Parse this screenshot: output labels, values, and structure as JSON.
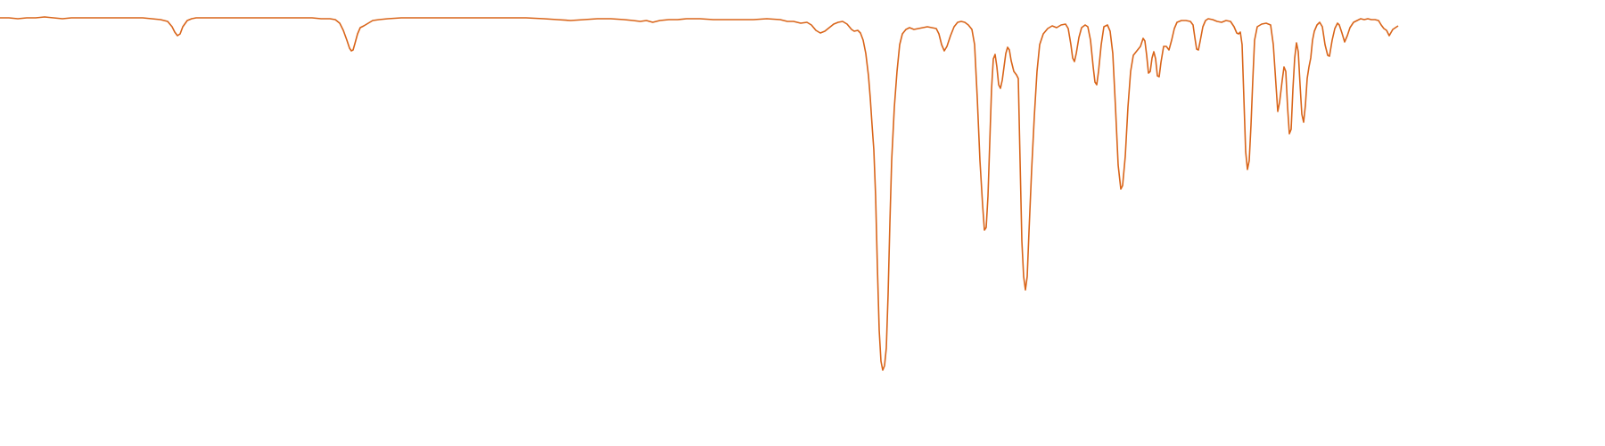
{
  "chart_data": {
    "type": "line",
    "title": "",
    "xlabel": "",
    "ylabel": "",
    "grid": false,
    "legend": "none",
    "series_color": "#d9651a",
    "xlim": [
      0,
      1568
    ],
    "ylim": [
      0,
      420
    ],
    "series": [
      {
        "name": "",
        "points": [
          [
            0,
            20
          ],
          [
            10,
            20
          ],
          [
            20,
            21
          ],
          [
            30,
            20
          ],
          [
            40,
            20
          ],
          [
            50,
            19
          ],
          [
            60,
            20
          ],
          [
            70,
            21
          ],
          [
            80,
            20
          ],
          [
            90,
            20
          ],
          [
            100,
            20
          ],
          [
            110,
            20
          ],
          [
            120,
            20
          ],
          [
            130,
            20
          ],
          [
            140,
            20
          ],
          [
            150,
            20
          ],
          [
            160,
            20
          ],
          [
            170,
            21
          ],
          [
            180,
            22
          ],
          [
            188,
            24
          ],
          [
            193,
            30
          ],
          [
            196,
            36
          ],
          [
            199,
            40
          ],
          [
            202,
            38
          ],
          [
            205,
            30
          ],
          [
            210,
            23
          ],
          [
            215,
            21
          ],
          [
            220,
            20
          ],
          [
            230,
            20
          ],
          [
            240,
            20
          ],
          [
            250,
            20
          ],
          [
            260,
            20
          ],
          [
            270,
            20
          ],
          [
            280,
            20
          ],
          [
            290,
            20
          ],
          [
            300,
            20
          ],
          [
            310,
            20
          ],
          [
            320,
            20
          ],
          [
            330,
            20
          ],
          [
            340,
            20
          ],
          [
            350,
            20
          ],
          [
            360,
            21
          ],
          [
            370,
            21
          ],
          [
            376,
            22
          ],
          [
            381,
            26
          ],
          [
            385,
            34
          ],
          [
            389,
            45
          ],
          [
            392,
            54
          ],
          [
            394,
            57
          ],
          [
            396,
            56
          ],
          [
            398,
            49
          ],
          [
            401,
            38
          ],
          [
            404,
            31
          ],
          [
            408,
            29
          ],
          [
            413,
            26
          ],
          [
            418,
            23
          ],
          [
            425,
            22
          ],
          [
            435,
            21
          ],
          [
            450,
            20
          ],
          [
            470,
            20
          ],
          [
            490,
            20
          ],
          [
            510,
            20
          ],
          [
            530,
            20
          ],
          [
            550,
            20
          ],
          [
            570,
            20
          ],
          [
            590,
            20
          ],
          [
            610,
            21
          ],
          [
            625,
            22
          ],
          [
            640,
            23
          ],
          [
            655,
            22
          ],
          [
            670,
            21
          ],
          [
            685,
            21
          ],
          [
            700,
            22
          ],
          [
            710,
            23
          ],
          [
            718,
            24
          ],
          [
            725,
            23
          ],
          [
            732,
            25
          ],
          [
            740,
            23
          ],
          [
            750,
            22
          ],
          [
            760,
            22
          ],
          [
            770,
            21
          ],
          [
            785,
            21
          ],
          [
            800,
            22
          ],
          [
            815,
            22
          ],
          [
            830,
            22
          ],
          [
            845,
            22
          ],
          [
            860,
            21
          ],
          [
            875,
            22
          ],
          [
            883,
            24
          ],
          [
            890,
            24
          ],
          [
            898,
            26
          ],
          [
            905,
            25
          ],
          [
            910,
            28
          ],
          [
            915,
            34
          ],
          [
            920,
            37
          ],
          [
            925,
            35
          ],
          [
            930,
            31
          ],
          [
            935,
            27
          ],
          [
            940,
            25
          ],
          [
            945,
            24
          ],
          [
            950,
            27
          ],
          [
            955,
            33
          ],
          [
            958,
            35
          ],
          [
            962,
            34
          ],
          [
            965,
            37
          ],
          [
            968,
            45
          ],
          [
            971,
            60
          ],
          [
            974,
            85
          ],
          [
            976,
            110
          ],
          [
            978,
            140
          ],
          [
            980,
            168
          ],
          [
            982,
            220
          ],
          [
            984,
            300
          ],
          [
            986,
            370
          ],
          [
            988,
            405
          ],
          [
            990,
            415
          ],
          [
            992,
            410
          ],
          [
            994,
            390
          ],
          [
            996,
            330
          ],
          [
            998,
            250
          ],
          [
            1000,
            180
          ],
          [
            1003,
            120
          ],
          [
            1006,
            80
          ],
          [
            1009,
            50
          ],
          [
            1012,
            38
          ],
          [
            1016,
            33
          ],
          [
            1020,
            31
          ],
          [
            1025,
            33
          ],
          [
            1030,
            32
          ],
          [
            1035,
            31
          ],
          [
            1040,
            30
          ],
          [
            1045,
            31
          ],
          [
            1050,
            32
          ],
          [
            1053,
            38
          ],
          [
            1056,
            50
          ],
          [
            1059,
            57
          ],
          [
            1062,
            52
          ],
          [
            1066,
            40
          ],
          [
            1070,
            30
          ],
          [
            1074,
            25
          ],
          [
            1078,
            24
          ],
          [
            1082,
            25
          ],
          [
            1086,
            28
          ],
          [
            1090,
            33
          ],
          [
            1093,
            50
          ],
          [
            1096,
            110
          ],
          [
            1099,
            180
          ],
          [
            1102,
            230
          ],
          [
            1104,
            258
          ],
          [
            1106,
            255
          ],
          [
            1108,
            220
          ],
          [
            1110,
            160
          ],
          [
            1112,
            100
          ],
          [
            1114,
            66
          ],
          [
            1116,
            61
          ],
          [
            1118,
            75
          ],
          [
            1120,
            95
          ],
          [
            1122,
            99
          ],
          [
            1124,
            90
          ],
          [
            1126,
            75
          ],
          [
            1128,
            60
          ],
          [
            1130,
            53
          ],
          [
            1132,
            56
          ],
          [
            1134,
            68
          ],
          [
            1137,
            80
          ],
          [
            1140,
            84
          ],
          [
            1142,
            88
          ],
          [
            1144,
            180
          ],
          [
            1146,
            270
          ],
          [
            1148,
            310
          ],
          [
            1150,
            325
          ],
          [
            1152,
            310
          ],
          [
            1154,
            260
          ],
          [
            1157,
            190
          ],
          [
            1160,
            130
          ],
          [
            1163,
            80
          ],
          [
            1166,
            50
          ],
          [
            1170,
            38
          ],
          [
            1175,
            32
          ],
          [
            1180,
            29
          ],
          [
            1185,
            31
          ],
          [
            1190,
            28
          ],
          [
            1195,
            27
          ],
          [
            1198,
            32
          ],
          [
            1201,
            50
          ],
          [
            1203,
            65
          ],
          [
            1205,
            69
          ],
          [
            1207,
            60
          ],
          [
            1210,
            42
          ],
          [
            1213,
            31
          ],
          [
            1217,
            28
          ],
          [
            1220,
            30
          ],
          [
            1223,
            45
          ],
          [
            1226,
            75
          ],
          [
            1228,
            92
          ],
          [
            1230,
            95
          ],
          [
            1232,
            80
          ],
          [
            1235,
            50
          ],
          [
            1238,
            30
          ],
          [
            1242,
            28
          ],
          [
            1245,
            35
          ],
          [
            1248,
            60
          ],
          [
            1251,
            120
          ],
          [
            1254,
            185
          ],
          [
            1257,
            212
          ],
          [
            1259,
            208
          ],
          [
            1262,
            175
          ],
          [
            1265,
            120
          ],
          [
            1268,
            80
          ],
          [
            1271,
            62
          ],
          [
            1275,
            57
          ],
          [
            1279,
            52
          ],
          [
            1282,
            43
          ],
          [
            1284,
            46
          ],
          [
            1286,
            62
          ],
          [
            1288,
            82
          ],
          [
            1290,
            80
          ],
          [
            1292,
            65
          ],
          [
            1294,
            58
          ],
          [
            1296,
            66
          ],
          [
            1298,
            85
          ],
          [
            1300,
            86
          ],
          [
            1302,
            70
          ],
          [
            1305,
            52
          ],
          [
            1308,
            52
          ],
          [
            1311,
            56
          ],
          [
            1314,
            45
          ],
          [
            1317,
            32
          ],
          [
            1320,
            25
          ],
          [
            1325,
            23
          ],
          [
            1330,
            23
          ],
          [
            1335,
            24
          ],
          [
            1338,
            28
          ],
          [
            1340,
            42
          ],
          [
            1342,
            55
          ],
          [
            1344,
            56
          ],
          [
            1346,
            46
          ],
          [
            1349,
            30
          ],
          [
            1352,
            23
          ],
          [
            1355,
            21
          ],
          [
            1360,
            22
          ],
          [
            1365,
            24
          ],
          [
            1370,
            25
          ],
          [
            1375,
            23
          ],
          [
            1380,
            24
          ],
          [
            1384,
            30
          ],
          [
            1387,
            37
          ],
          [
            1389,
            38
          ],
          [
            1391,
            36
          ],
          [
            1393,
            50
          ],
          [
            1395,
            110
          ],
          [
            1397,
            170
          ],
          [
            1399,
            190
          ],
          [
            1401,
            180
          ],
          [
            1403,
            140
          ],
          [
            1405,
            90
          ],
          [
            1407,
            45
          ],
          [
            1410,
            30
          ],
          [
            1415,
            27
          ],
          [
            1420,
            26
          ],
          [
            1425,
            28
          ],
          [
            1428,
            50
          ],
          [
            1431,
            95
          ],
          [
            1433,
            125
          ],
          [
            1435,
            115
          ],
          [
            1438,
            90
          ],
          [
            1440,
            75
          ],
          [
            1442,
            80
          ],
          [
            1444,
            120
          ],
          [
            1446,
            150
          ],
          [
            1448,
            145
          ],
          [
            1450,
            100
          ],
          [
            1452,
            65
          ],
          [
            1454,
            48
          ],
          [
            1456,
            58
          ],
          [
            1458,
            95
          ],
          [
            1460,
            128
          ],
          [
            1462,
            137
          ],
          [
            1464,
            118
          ],
          [
            1466,
            88
          ],
          [
            1468,
            75
          ],
          [
            1470,
            65
          ],
          [
            1472,
            45
          ],
          [
            1474,
            35
          ],
          [
            1477,
            28
          ],
          [
            1480,
            25
          ],
          [
            1483,
            30
          ],
          [
            1486,
            50
          ],
          [
            1489,
            62
          ],
          [
            1491,
            63
          ],
          [
            1494,
            45
          ],
          [
            1497,
            32
          ],
          [
            1500,
            26
          ],
          [
            1502,
            28
          ],
          [
            1505,
            37
          ],
          [
            1508,
            47
          ],
          [
            1511,
            40
          ],
          [
            1514,
            31
          ],
          [
            1518,
            25
          ],
          [
            1522,
            23
          ],
          [
            1526,
            21
          ],
          [
            1530,
            22
          ],
          [
            1534,
            21
          ],
          [
            1538,
            22
          ],
          [
            1542,
            22
          ],
          [
            1546,
            23
          ],
          [
            1549,
            28
          ],
          [
            1552,
            32
          ],
          [
            1555,
            34
          ],
          [
            1558,
            40
          ],
          [
            1562,
            33
          ],
          [
            1568,
            29
          ]
        ]
      }
    ]
  }
}
